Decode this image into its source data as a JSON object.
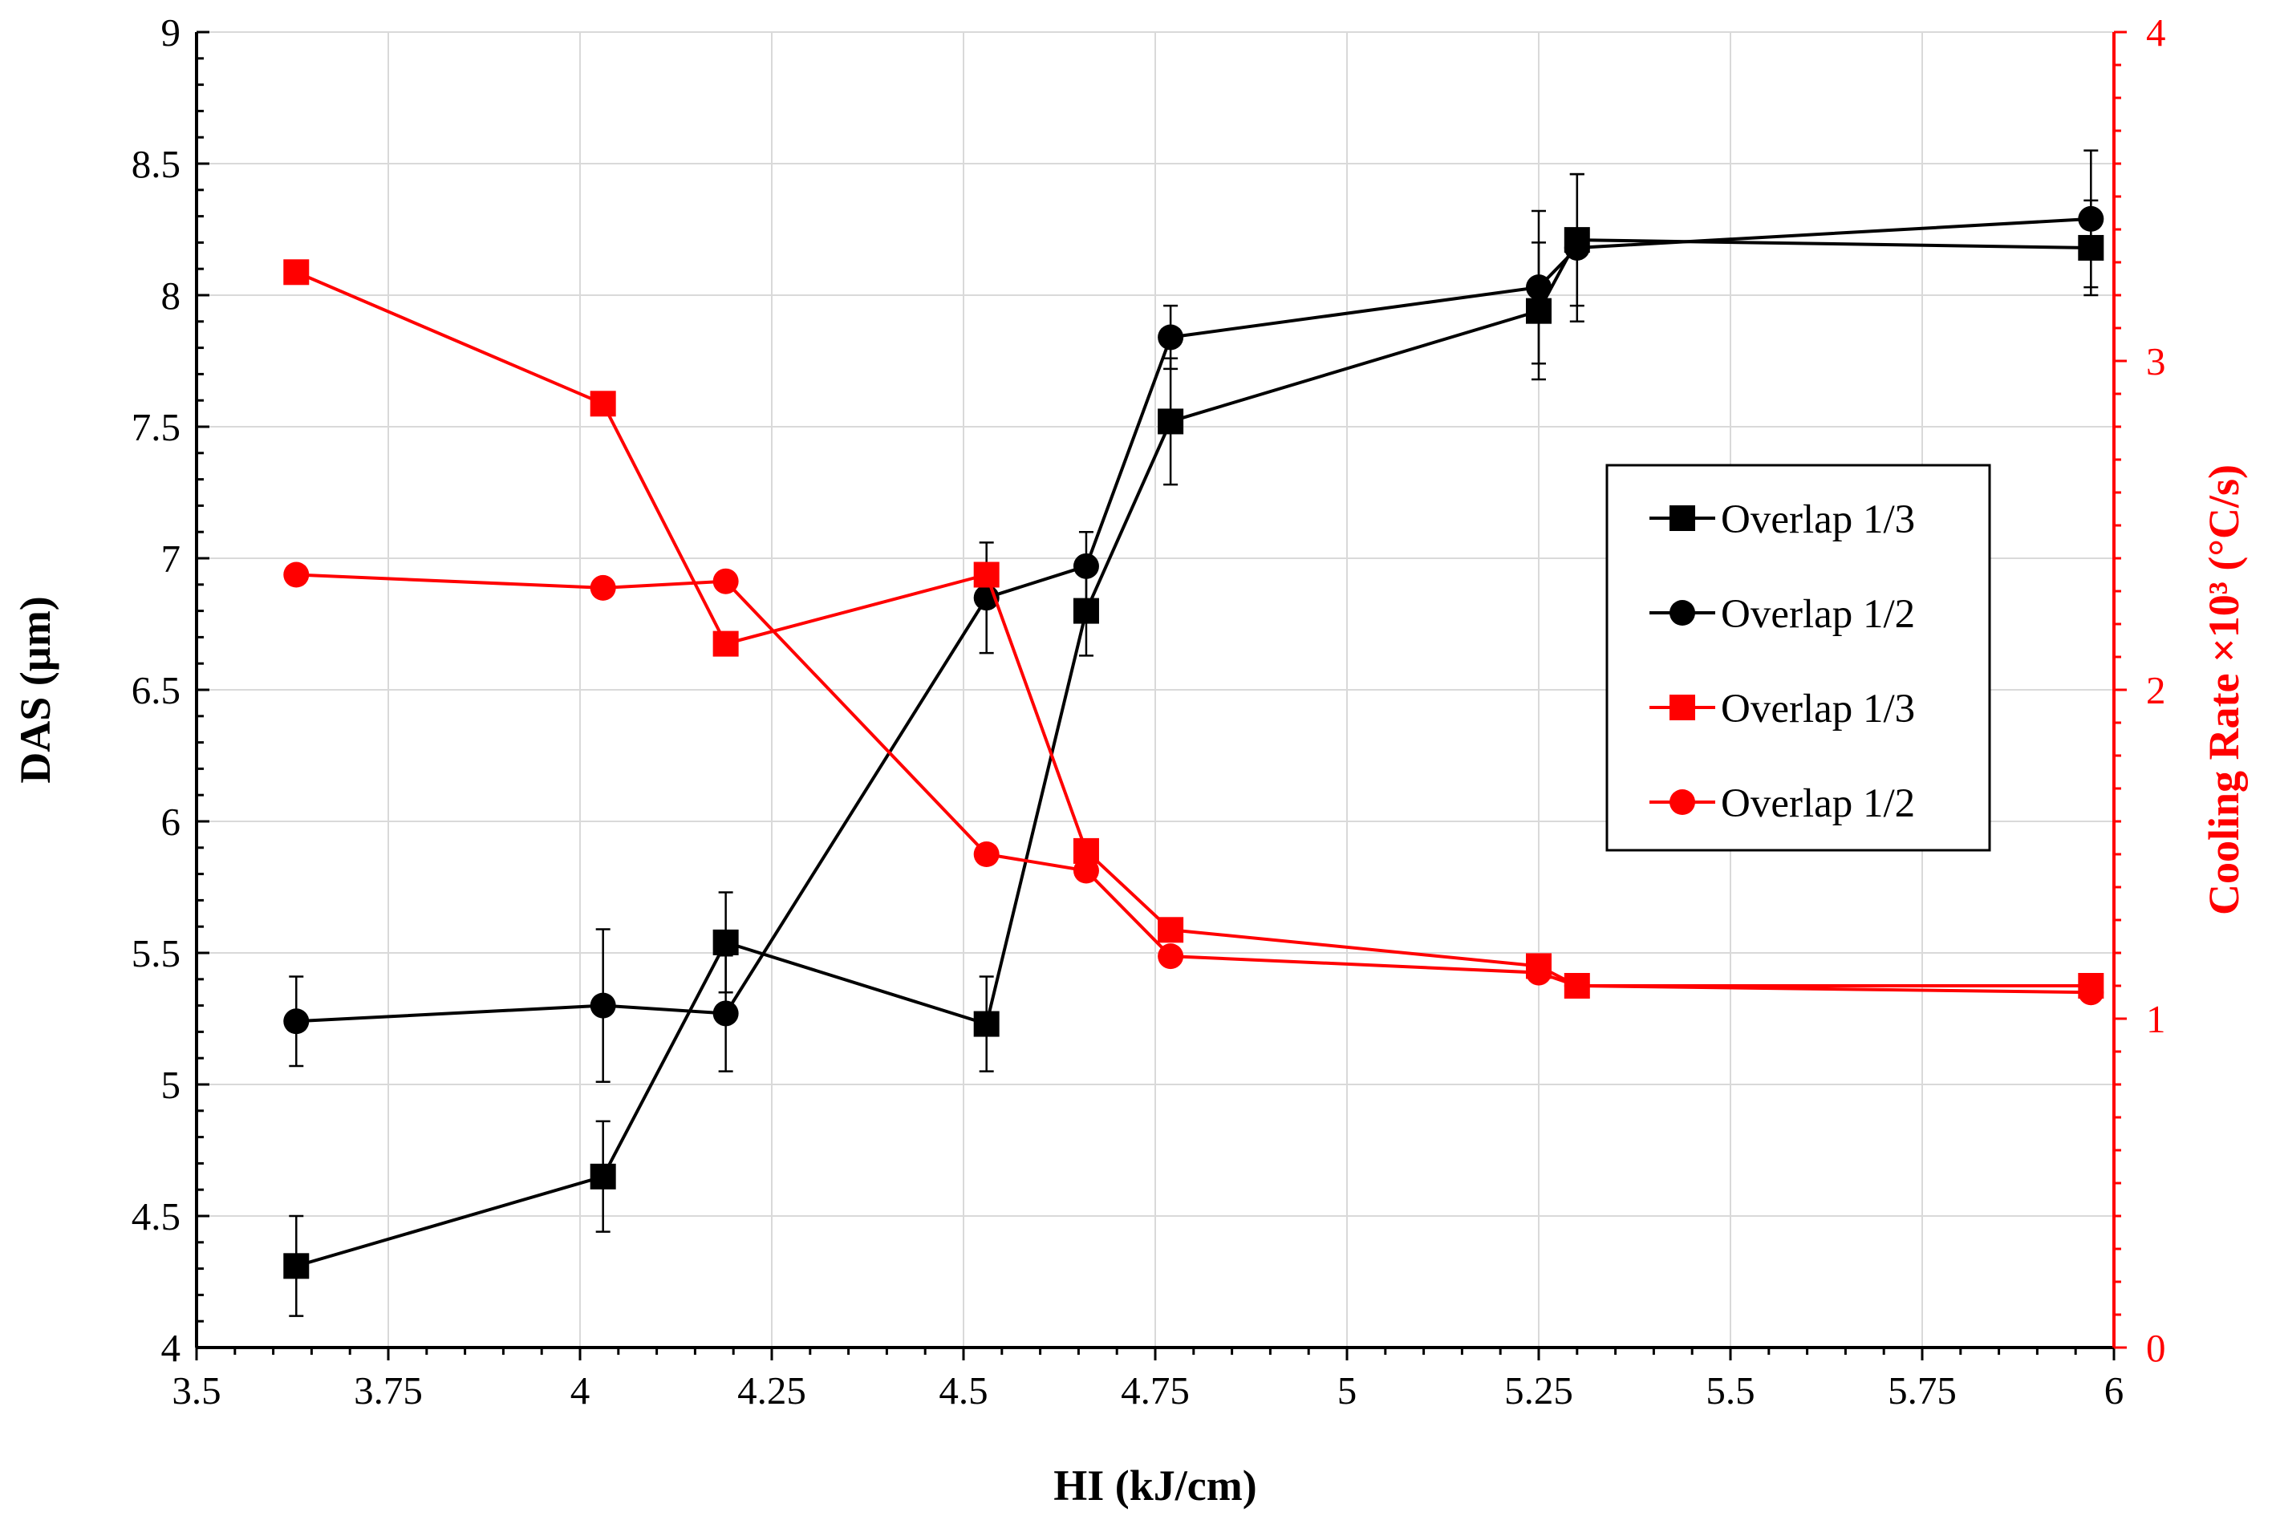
{
  "chart_data": {
    "type": "line",
    "title": "",
    "xlabel": "HI (kJ/cm)",
    "ylabel_left": "DAS (µm)",
    "ylabel_right": "Cooling Rate ×10³ (°C/s)",
    "xlim": [
      3.5,
      6
    ],
    "ylim_left": [
      4,
      9
    ],
    "ylim_right": [
      0,
      4
    ],
    "x_ticks": [
      "3.5",
      "3.75",
      "4",
      "4.25",
      "4.5",
      "4.75",
      "5",
      "5.25",
      "5.5",
      "5.75",
      "6"
    ],
    "y_left_ticks": [
      "4",
      "4.5",
      "5",
      "5.5",
      "6",
      "6.5",
      "7",
      "7.5",
      "8",
      "8.5",
      "9"
    ],
    "y_right_ticks": [
      "0",
      "1",
      "2",
      "3",
      "4"
    ],
    "grid": true,
    "legend_position": "right-center",
    "colors": {
      "das": "#000000",
      "cooling": "#ff0000"
    },
    "series": [
      {
        "name": "Overlap 1/3",
        "axis": "left",
        "marker": "square",
        "color": "#000000",
        "x": [
          3.63,
          4.03,
          4.19,
          4.53,
          4.66,
          4.77,
          5.25,
          5.3,
          5.97
        ],
        "y": [
          4.31,
          4.65,
          5.54,
          5.23,
          6.8,
          7.52,
          7.94,
          8.21,
          8.18
        ],
        "err": [
          0.19,
          0.21,
          0.19,
          0.18,
          0.17,
          0.24,
          0.26,
          0.25,
          0.18
        ]
      },
      {
        "name": "Overlap 1/2",
        "axis": "left",
        "marker": "circle",
        "color": "#000000",
        "x": [
          3.63,
          4.03,
          4.19,
          4.53,
          4.66,
          4.77,
          5.25,
          5.3,
          5.97
        ],
        "y": [
          5.24,
          5.3,
          5.27,
          6.85,
          6.97,
          7.84,
          8.03,
          8.18,
          8.29
        ],
        "err": [
          0.17,
          0.29,
          0.22,
          0.21,
          0.13,
          0.12,
          0.29,
          0.28,
          0.26
        ]
      },
      {
        "name": "Overlap 1/3",
        "axis": "right",
        "marker": "square",
        "color": "#ff0000",
        "x": [
          3.63,
          4.03,
          4.19,
          4.53,
          4.66,
          4.77,
          5.25,
          5.3,
          5.97
        ],
        "y": [
          3.27,
          2.87,
          2.14,
          2.35,
          1.51,
          1.27,
          1.16,
          1.1,
          1.1
        ]
      },
      {
        "name": "Overlap 1/2",
        "axis": "right",
        "marker": "circle",
        "color": "#ff0000",
        "x": [
          3.63,
          4.03,
          4.19,
          4.53,
          4.66,
          4.77,
          5.25,
          5.3,
          5.97
        ],
        "y": [
          2.35,
          2.31,
          2.33,
          1.5,
          1.45,
          1.19,
          1.14,
          1.1,
          1.08
        ]
      }
    ]
  }
}
